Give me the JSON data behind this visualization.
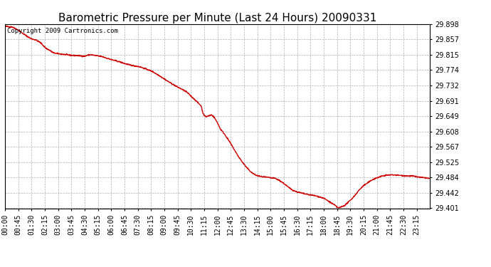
{
  "title": "Barometric Pressure per Minute (Last 24 Hours) 20090331",
  "copyright_text": "Copyright 2009 Cartronics.com",
  "line_color": "#cc0000",
  "background_color": "#ffffff",
  "grid_color": "#b0b0b0",
  "ylim": [
    29.401,
    29.898
  ],
  "yticks": [
    29.898,
    29.857,
    29.815,
    29.774,
    29.732,
    29.691,
    29.649,
    29.608,
    29.567,
    29.525,
    29.484,
    29.442,
    29.401
  ],
  "xtick_labels": [
    "00:00",
    "00:45",
    "01:30",
    "02:15",
    "03:00",
    "03:45",
    "04:30",
    "05:15",
    "06:00",
    "06:45",
    "07:30",
    "08:15",
    "09:00",
    "09:45",
    "10:30",
    "11:15",
    "12:00",
    "12:45",
    "13:30",
    "14:15",
    "15:00",
    "15:45",
    "16:30",
    "17:15",
    "18:00",
    "18:45",
    "19:30",
    "20:15",
    "21:00",
    "21:45",
    "22:30",
    "23:15"
  ],
  "title_fontsize": 11,
  "tick_fontsize": 7,
  "copyright_fontsize": 6.5,
  "line_width": 1.0,
  "waypoints": [
    [
      0,
      29.892
    ],
    [
      25,
      29.89
    ],
    [
      45,
      29.882
    ],
    [
      60,
      29.873
    ],
    [
      75,
      29.865
    ],
    [
      90,
      29.858
    ],
    [
      105,
      29.855
    ],
    [
      120,
      29.848
    ],
    [
      130,
      29.84
    ],
    [
      140,
      29.832
    ],
    [
      150,
      29.828
    ],
    [
      165,
      29.82
    ],
    [
      180,
      29.818
    ],
    [
      200,
      29.816
    ],
    [
      220,
      29.814
    ],
    [
      240,
      29.813
    ],
    [
      260,
      29.812
    ],
    [
      270,
      29.811
    ],
    [
      280,
      29.814
    ],
    [
      290,
      29.815
    ],
    [
      300,
      29.814
    ],
    [
      315,
      29.812
    ],
    [
      330,
      29.81
    ],
    [
      345,
      29.806
    ],
    [
      360,
      29.802
    ],
    [
      380,
      29.798
    ],
    [
      400,
      29.793
    ],
    [
      420,
      29.788
    ],
    [
      440,
      29.785
    ],
    [
      455,
      29.783
    ],
    [
      470,
      29.779
    ],
    [
      480,
      29.776
    ],
    [
      490,
      29.773
    ],
    [
      500,
      29.77
    ],
    [
      510,
      29.765
    ],
    [
      525,
      29.758
    ],
    [
      540,
      29.75
    ],
    [
      555,
      29.742
    ],
    [
      570,
      29.735
    ],
    [
      585,
      29.728
    ],
    [
      600,
      29.722
    ],
    [
      615,
      29.715
    ],
    [
      625,
      29.708
    ],
    [
      635,
      29.7
    ],
    [
      645,
      29.693
    ],
    [
      655,
      29.685
    ],
    [
      665,
      29.677
    ],
    [
      670,
      29.66
    ],
    [
      675,
      29.652
    ],
    [
      680,
      29.648
    ],
    [
      690,
      29.65
    ],
    [
      695,
      29.652
    ],
    [
      700,
      29.653
    ],
    [
      705,
      29.65
    ],
    [
      710,
      29.645
    ],
    [
      720,
      29.632
    ],
    [
      730,
      29.615
    ],
    [
      745,
      29.6
    ],
    [
      760,
      29.582
    ],
    [
      775,
      29.562
    ],
    [
      790,
      29.542
    ],
    [
      805,
      29.525
    ],
    [
      820,
      29.51
    ],
    [
      835,
      29.498
    ],
    [
      850,
      29.49
    ],
    [
      865,
      29.487
    ],
    [
      880,
      29.485
    ],
    [
      895,
      29.484
    ],
    [
      900,
      29.483
    ],
    [
      915,
      29.482
    ],
    [
      930,
      29.476
    ],
    [
      945,
      29.468
    ],
    [
      960,
      29.458
    ],
    [
      975,
      29.45
    ],
    [
      990,
      29.445
    ],
    [
      1005,
      29.442
    ],
    [
      1020,
      29.439
    ],
    [
      1035,
      29.437
    ],
    [
      1050,
      29.435
    ],
    [
      1065,
      29.432
    ],
    [
      1080,
      29.428
    ],
    [
      1095,
      29.421
    ],
    [
      1110,
      29.413
    ],
    [
      1120,
      29.408
    ],
    [
      1125,
      29.404
    ],
    [
      1130,
      29.402
    ],
    [
      1135,
      29.403
    ],
    [
      1140,
      29.405
    ],
    [
      1150,
      29.408
    ],
    [
      1160,
      29.415
    ],
    [
      1170,
      29.422
    ],
    [
      1185,
      29.435
    ],
    [
      1200,
      29.45
    ],
    [
      1215,
      29.462
    ],
    [
      1230,
      29.47
    ],
    [
      1245,
      29.478
    ],
    [
      1260,
      29.483
    ],
    [
      1275,
      29.487
    ],
    [
      1290,
      29.49
    ],
    [
      1305,
      29.491
    ],
    [
      1320,
      29.491
    ],
    [
      1335,
      29.49
    ],
    [
      1350,
      29.489
    ],
    [
      1365,
      29.488
    ],
    [
      1380,
      29.488
    ],
    [
      1395,
      29.486
    ],
    [
      1410,
      29.484
    ],
    [
      1425,
      29.483
    ],
    [
      1439,
      29.481
    ]
  ]
}
